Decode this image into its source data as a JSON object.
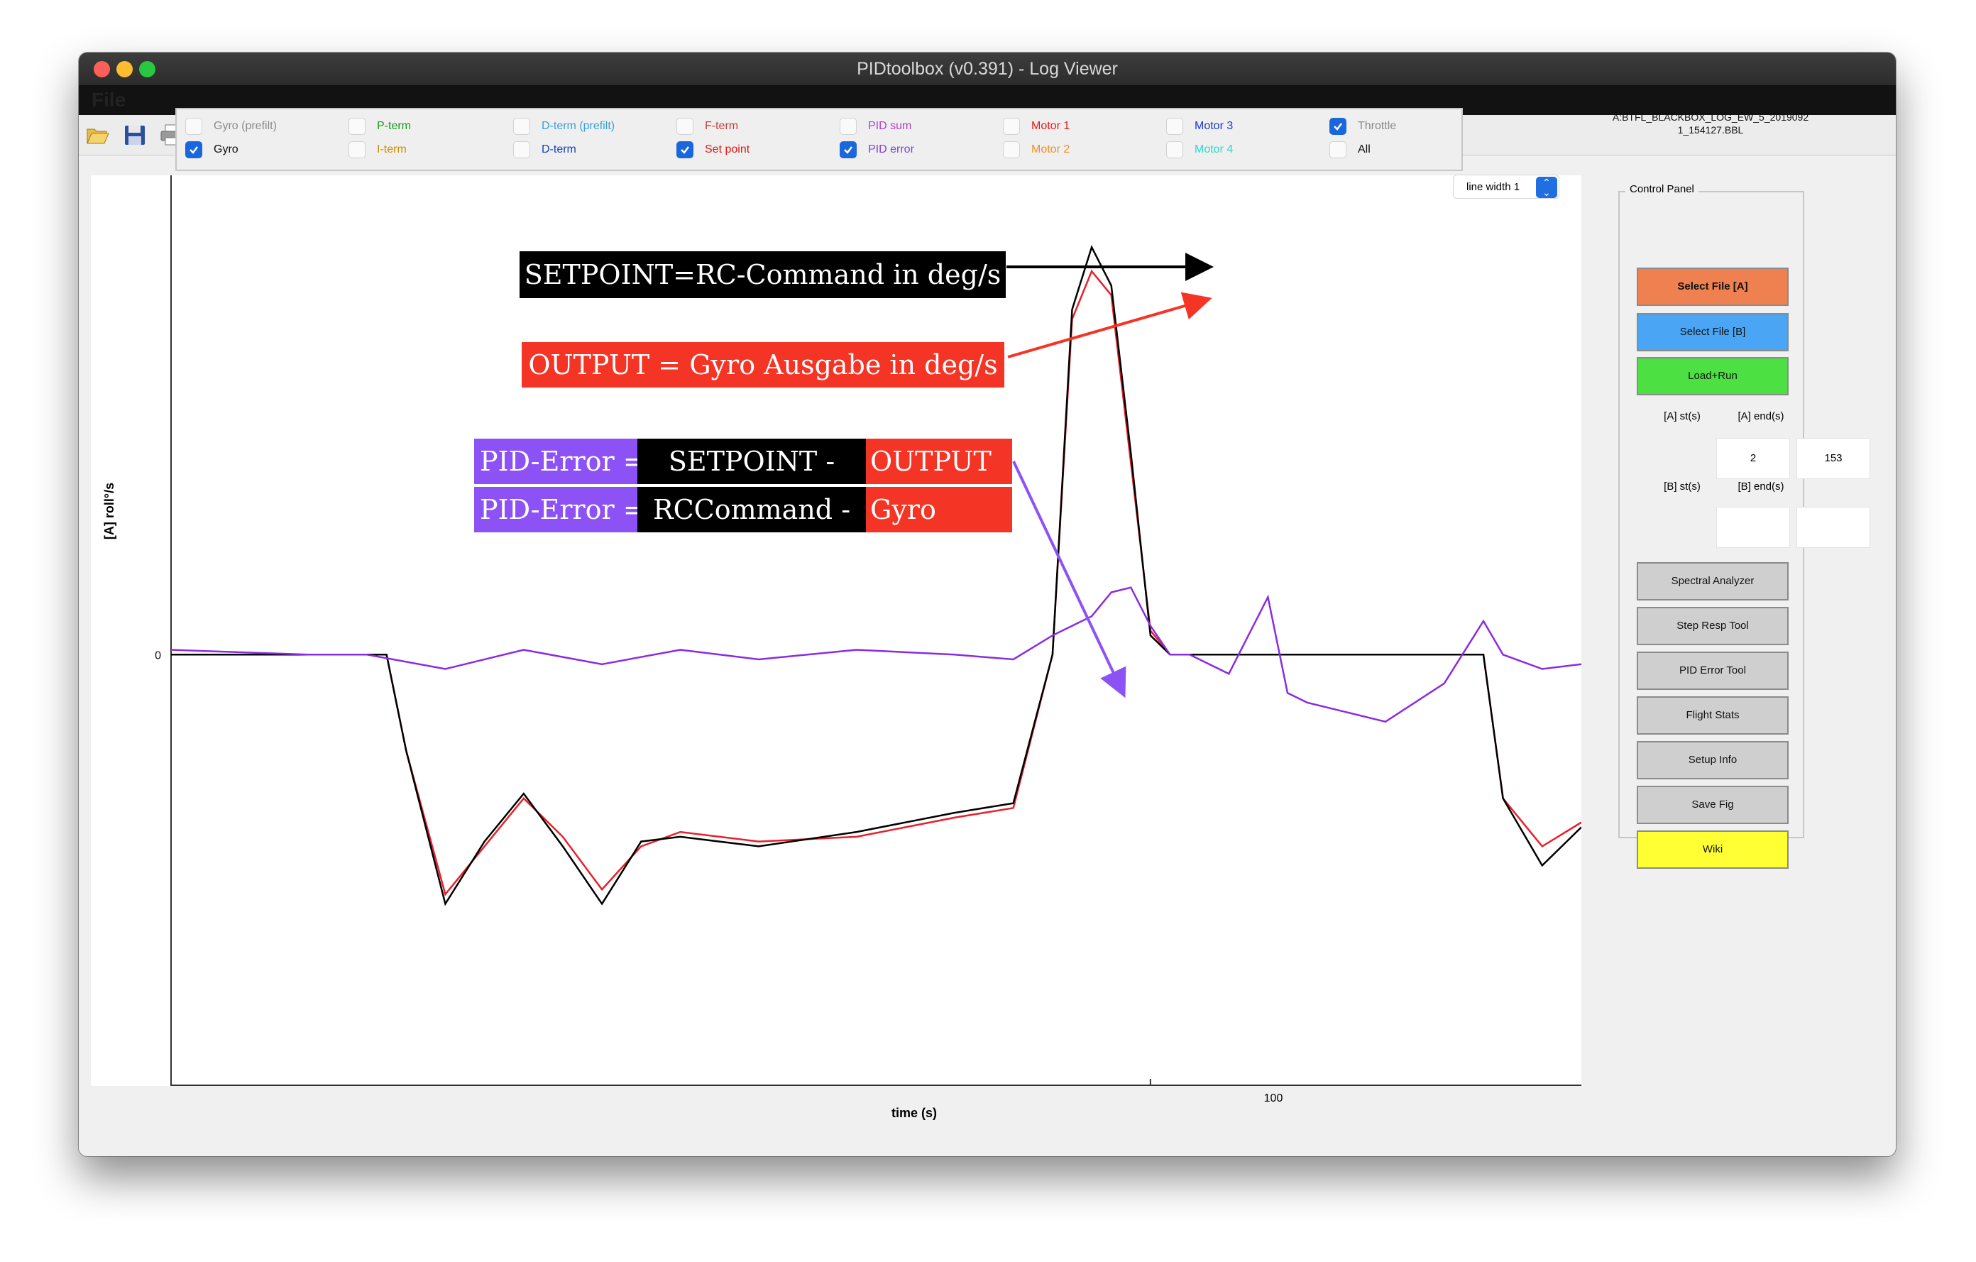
{
  "window": {
    "title": "PIDtoolbox (v0.391) - Log Viewer"
  },
  "menu": {
    "file": "File"
  },
  "toolbar": [
    "open-icon",
    "save-icon",
    "print-icon",
    "tablet-icon",
    "layout-icon"
  ],
  "checkboxes": [
    {
      "label": "Gyro (prefilt)",
      "checked": false,
      "color": "#8a8a8a"
    },
    {
      "label": "Gyro",
      "checked": true,
      "color": "#111111"
    },
    {
      "label": "P-term",
      "checked": false,
      "color": "#1a9a1a"
    },
    {
      "label": "I-term",
      "checked": false,
      "color": "#c89000"
    },
    {
      "label": "D-term (prefilt)",
      "checked": false,
      "color": "#3ca0d8"
    },
    {
      "label": "D-term",
      "checked": false,
      "color": "#1740b8"
    },
    {
      "label": "F-term",
      "checked": false,
      "color": "#c83c3c"
    },
    {
      "label": "Set point",
      "checked": true,
      "color": "#e01818"
    },
    {
      "label": "PID sum",
      "checked": false,
      "color": "#b040d0"
    },
    {
      "label": "PID error",
      "checked": true,
      "color": "#8040e0"
    },
    {
      "label": "Motor 1",
      "checked": false,
      "color": "#e81818"
    },
    {
      "label": "Motor 2",
      "checked": false,
      "color": "#f09020"
    },
    {
      "label": "Motor 3",
      "checked": false,
      "color": "#1a3ad0"
    },
    {
      "label": "Motor 4",
      "checked": false,
      "color": "#30d8c8"
    },
    {
      "label": "Throttle",
      "checked": true,
      "color": "#8a8a8a"
    },
    {
      "label": "All",
      "checked": false,
      "color": "#111111"
    }
  ],
  "file_name_line1": "A:BTFL_BLACKBOX_LOG_EW_5_2019092",
  "file_name_line2": "1_154127.BBL",
  "line_width": "line width 1",
  "plot": {
    "ylabel": "[A] roll°/s",
    "xlabel": "time (s)",
    "ytick_zero": "0",
    "xtick_100": "100"
  },
  "control_panel": {
    "title": "Control Panel",
    "select_a": "Select File [A]",
    "select_b": "Select File [B]",
    "load_run": "Load+Run",
    "a_start_label": "[A] st(s)",
    "a_end_label": "[A] end(s)",
    "a_start": "2",
    "a_end": "153",
    "b_start_label": "[B] st(s)",
    "b_end_label": "[B] end(s)",
    "b_start": "",
    "b_end": "",
    "spectral": "Spectral Analyzer",
    "step_resp": "Step Resp Tool",
    "pid_error_tool": "PID Error Tool",
    "flight_stats": "Flight Stats",
    "setup_info": "Setup Info",
    "save_fig": "Save Fig",
    "wiki": "Wiki",
    "colors": {
      "select_a": "#ef8050",
      "select_b": "#4aa6f4",
      "load_run": "#4de043",
      "wiki": "#ffff33",
      "gray": "#cfcfcf"
    }
  },
  "annotations": {
    "setpoint": "SETPOINT=RC-Command in deg/s",
    "output": "OUTPUT = Gyro Ausgabe in deg/s",
    "row1": [
      "PID-Error =",
      "SETPOINT -",
      "OUTPUT"
    ],
    "row2": [
      "PID-Error =",
      "RCCommand -",
      "Gyro"
    ],
    "colors": {
      "black": "#000000",
      "red": "#f43424",
      "purple": "#8c52f5"
    }
  },
  "chart_data": {
    "type": "line",
    "xlabel": "time (s)",
    "ylabel": "[A] roll°/s",
    "series": [
      {
        "name": "Set point",
        "color": "#e8202a",
        "x": [
          50,
          57,
          60,
          61,
          62,
          64,
          66,
          68,
          70,
          72,
          74,
          76,
          80,
          85,
          90,
          93,
          95,
          96,
          97,
          98,
          99,
          100,
          101,
          102,
          104,
          110,
          115,
          117,
          118,
          120,
          122
        ],
        "y": [
          0,
          0,
          0,
          0,
          -200,
          -500,
          -400,
          -300,
          -380,
          -490,
          -400,
          -370,
          -390,
          -380,
          -340,
          -320,
          0,
          700,
          800,
          750,
          400,
          50,
          0,
          0,
          0,
          0,
          0,
          0,
          -300,
          -400,
          -350
        ]
      },
      {
        "name": "Gyro",
        "color": "#000000",
        "x": [
          50,
          57,
          60,
          61,
          62,
          64,
          66,
          68,
          70,
          72,
          74,
          76,
          80,
          85,
          90,
          93,
          95,
          96,
          97,
          98,
          99,
          100,
          101,
          102,
          104,
          110,
          115,
          117,
          118,
          120,
          122
        ],
        "y": [
          0,
          0,
          0,
          0,
          -200,
          -520,
          -390,
          -290,
          -400,
          -520,
          -390,
          -380,
          -400,
          -370,
          -330,
          -310,
          0,
          720,
          850,
          770,
          420,
          40,
          0,
          0,
          0,
          0,
          0,
          0,
          -300,
          -440,
          -360
        ]
      },
      {
        "name": "PID error",
        "color": "#8a2be2",
        "x": [
          50,
          57,
          60,
          64,
          68,
          72,
          76,
          80,
          85,
          90,
          93,
          95,
          96,
          97,
          98,
          99,
          100,
          101,
          102,
          104,
          106,
          107,
          108,
          110,
          112,
          115,
          117,
          118,
          120,
          122
        ],
        "y": [
          10,
          0,
          0,
          -30,
          10,
          -20,
          10,
          -10,
          10,
          0,
          -10,
          40,
          60,
          80,
          130,
          140,
          60,
          0,
          0,
          -40,
          120,
          -80,
          -100,
          -120,
          -140,
          -60,
          70,
          0,
          -30,
          -20
        ]
      }
    ]
  }
}
